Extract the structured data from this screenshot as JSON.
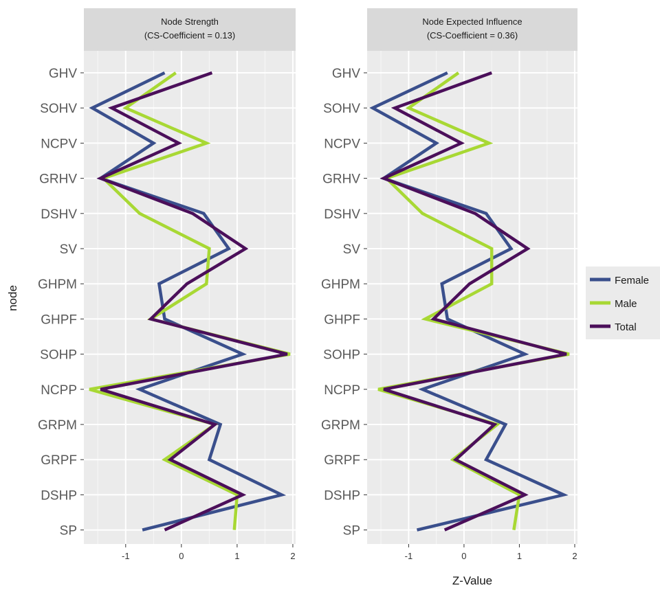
{
  "chart_data": {
    "type": "line",
    "ylabel": "node",
    "xlabel": "Z-Value",
    "nodes": [
      "GHV",
      "SOHV",
      "NCPV",
      "GRHV",
      "DSHV",
      "SV",
      "GHPM",
      "GHPF",
      "SOHP",
      "NCPP",
      "GRPM",
      "GRPF",
      "DSHP",
      "SP"
    ],
    "x_ticks": [
      "-1",
      "0",
      "1",
      "2"
    ],
    "legend": [
      {
        "name": "Female",
        "color": "#3a4f8c"
      },
      {
        "name": "Male",
        "color": "#a8d834"
      },
      {
        "name": "Total",
        "color": "#4b0f5a"
      }
    ],
    "panels": [
      {
        "title": "Node Strength",
        "subtitle": "(CS-Coefficient = 0.13)",
        "xlim": [
          -1.75,
          2.05
        ],
        "series": [
          {
            "name": "Female",
            "values": [
              -0.3,
              -1.6,
              -0.5,
              -1.45,
              0.4,
              0.85,
              -0.4,
              -0.3,
              1.1,
              -0.75,
              0.7,
              0.5,
              1.8,
              -0.7
            ]
          },
          {
            "name": "Male",
            "values": [
              -0.1,
              -1.0,
              0.45,
              -1.4,
              -0.75,
              0.5,
              0.45,
              -0.55,
              1.95,
              -1.65,
              0.6,
              -0.3,
              1.0,
              0.95
            ]
          },
          {
            "name": "Total",
            "values": [
              0.55,
              -1.25,
              -0.05,
              -1.45,
              0.2,
              1.15,
              0.1,
              -0.55,
              1.9,
              -1.45,
              0.6,
              -0.2,
              1.1,
              -0.3
            ]
          }
        ]
      },
      {
        "title": "Node Expected Influence",
        "subtitle": "(CS-Coefficient = 0.36)",
        "xlim": [
          -1.75,
          2.05
        ],
        "series": [
          {
            "name": "Female",
            "values": [
              -0.3,
              -1.65,
              -0.5,
              -1.45,
              0.4,
              0.85,
              -0.4,
              -0.3,
              1.1,
              -0.75,
              0.75,
              0.4,
              1.8,
              -0.85
            ]
          },
          {
            "name": "Male",
            "values": [
              -0.1,
              -1.0,
              0.45,
              -1.4,
              -0.75,
              0.5,
              0.5,
              -0.7,
              1.9,
              -1.55,
              0.6,
              -0.2,
              1.0,
              0.9
            ]
          },
          {
            "name": "Total",
            "values": [
              0.5,
              -1.25,
              -0.05,
              -1.45,
              0.2,
              1.15,
              0.1,
              -0.55,
              1.85,
              -1.45,
              0.55,
              -0.15,
              1.1,
              -0.35
            ]
          }
        ]
      }
    ]
  }
}
